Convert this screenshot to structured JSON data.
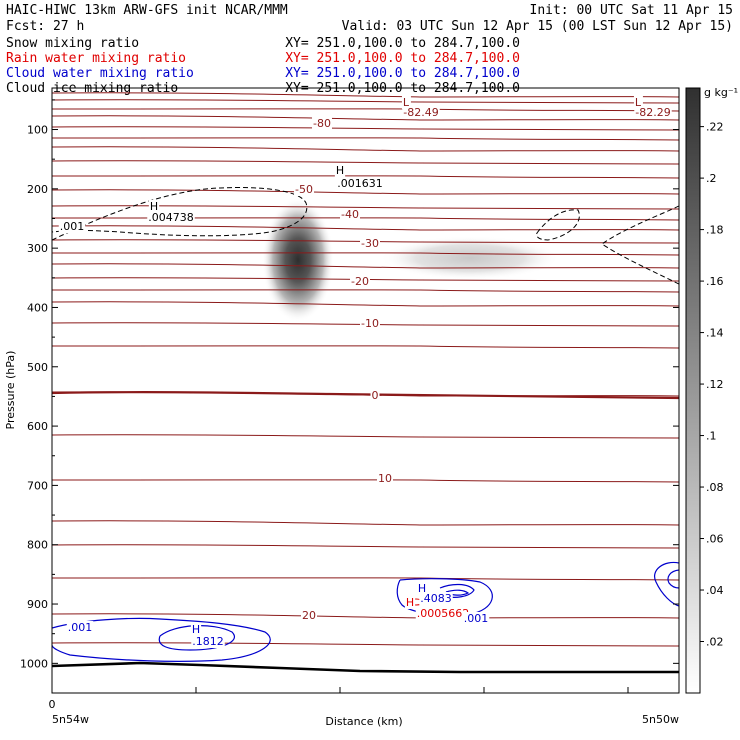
{
  "header": {
    "title": "HAIC-HIWC 13km ARW-GFS init   NCAR/MMM",
    "init": "Init: 00 UTC Sat 11 Apr 15",
    "fcst": "Fcst:   27 h",
    "valid": "Valid: 03 UTC Sun 12 Apr 15 (00 LST Sun 12 Apr 15)",
    "fields": [
      {
        "name": "Snow mixing ratio",
        "xy": "XY= 251.0,100.0 to 284.7,100.0",
        "color": "#000000"
      },
      {
        "name": "Rain water mixing ratio",
        "xy": "XY= 251.0,100.0 to 284.7,100.0",
        "color": "#e00000"
      },
      {
        "name": "Cloud water mixing ratio",
        "xy": "XY= 251.0,100.0 to 284.7,100.0",
        "color": "#0000cc"
      },
      {
        "name": "Cloud ice mixing ratio",
        "xy": "XY= 251.0,100.0 to 284.7,100.0",
        "color": "#000000"
      }
    ]
  },
  "chart_data": {
    "type": "heatmap",
    "xlabel": "Distance (km)",
    "ylabel": "Pressure (hPa)",
    "x_ticks": [
      "0"
    ],
    "x_endpoints": [
      "5n54w",
      "5n50w"
    ],
    "y_ticks": [
      100,
      200,
      300,
      400,
      500,
      600,
      700,
      800,
      900,
      1000
    ],
    "y_range": [
      1050,
      30
    ],
    "colorbar": {
      "unit": "g kg⁻¹",
      "ticks": [
        ".22",
        ".2",
        ".18",
        ".16",
        ".14",
        ".12",
        ".1",
        ".08",
        ".06",
        ".04",
        ".02"
      ],
      "range": [
        0,
        0.235
      ]
    },
    "temperature_contours": [
      -80,
      -50,
      -40,
      -30,
      -20,
      -10,
      0,
      10,
      20
    ],
    "labels": [
      {
        "text": "-80",
        "color": "#8b1a1a"
      },
      {
        "text": "-50",
        "color": "#8b1a1a"
      },
      {
        "text": "-40",
        "color": "#8b1a1a"
      },
      {
        "text": "-30",
        "color": "#8b1a1a"
      },
      {
        "text": "-20",
        "color": "#8b1a1a"
      },
      {
        "text": "-10",
        "color": "#8b1a1a"
      },
      {
        "text": "0",
        "color": "#8b1a1a"
      },
      {
        "text": "10",
        "color": "#8b1a1a"
      },
      {
        "text": "20",
        "color": "#8b1a1a"
      },
      {
        "text": "L",
        "color": "#8b1a1a"
      },
      {
        "text": "-82.49",
        "color": "#8b1a1a"
      },
      {
        "text": "L",
        "color": "#8b1a1a"
      },
      {
        "text": "-82.29",
        "color": "#8b1a1a"
      },
      {
        "text": "H",
        "color": "#000000"
      },
      {
        "text": ".001631",
        "color": "#000000"
      },
      {
        "text": "H",
        "color": "#000000"
      },
      {
        "text": ".004738",
        "color": "#000000"
      },
      {
        "text": ".001",
        "color": "#000000"
      },
      {
        "text": "H",
        "color": "#0000cc"
      },
      {
        "text": ".4083",
        "color": "#0000cc"
      },
      {
        "text": "H",
        "color": "#e00000"
      },
      {
        "text": ".0005662",
        "color": "#e00000"
      },
      {
        "text": ".001",
        "color": "#0000cc"
      },
      {
        "text": ".001",
        "color": "#0000cc"
      },
      {
        "text": "H",
        "color": "#0000cc"
      },
      {
        "text": ".1812",
        "color": "#0000cc"
      }
    ]
  }
}
